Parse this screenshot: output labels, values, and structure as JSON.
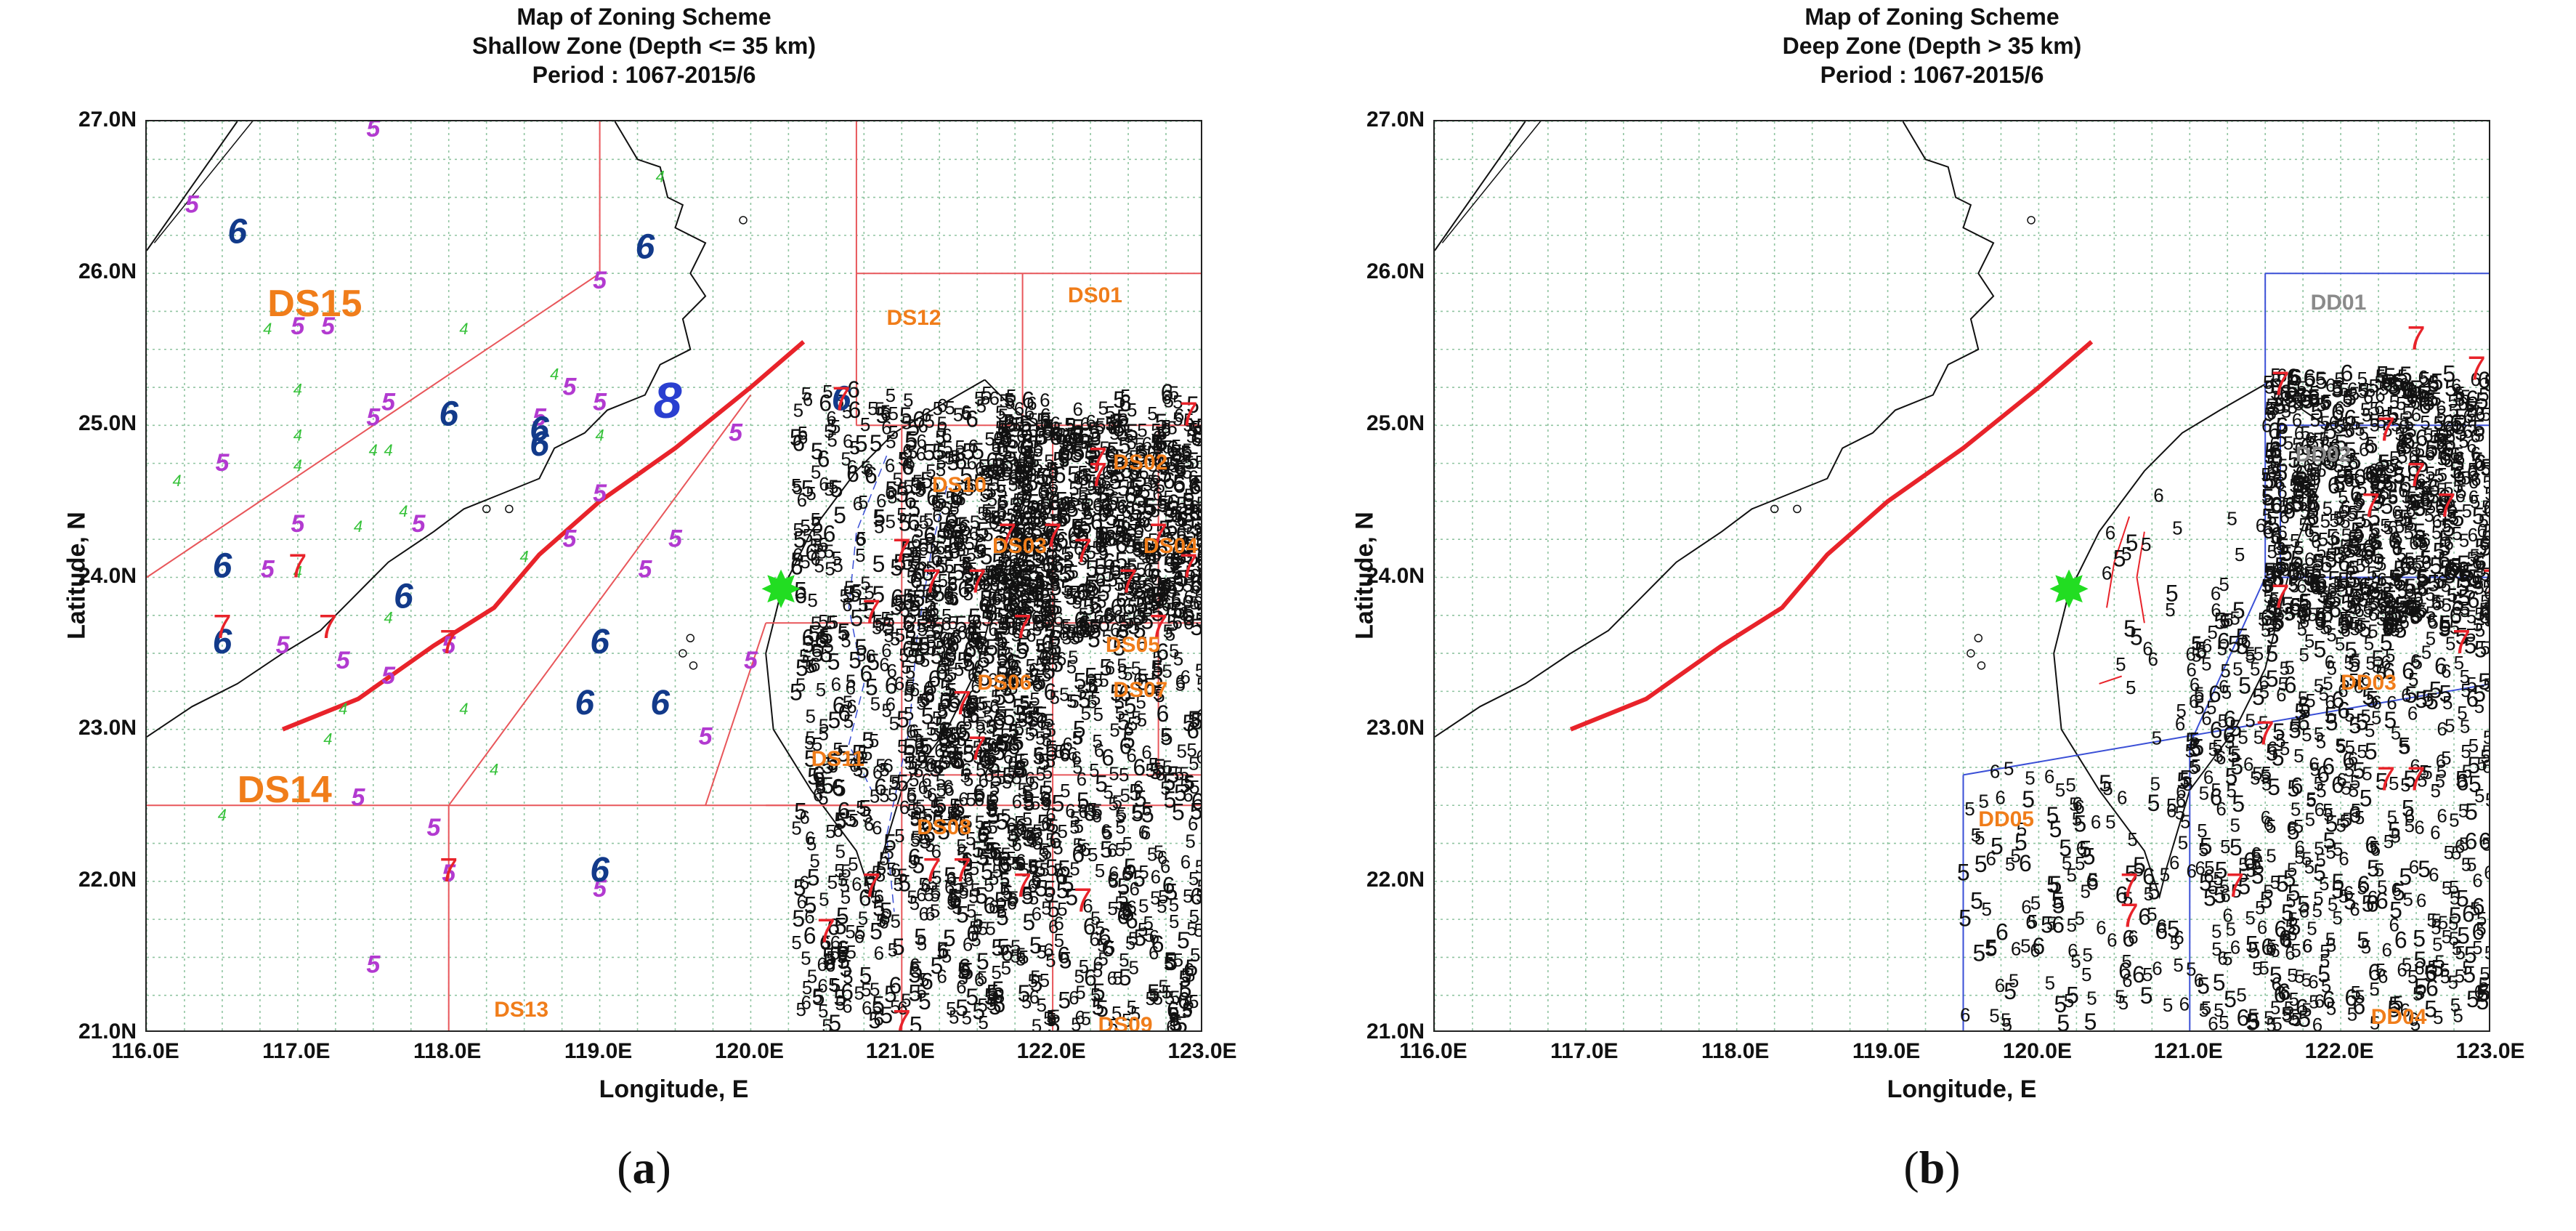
{
  "figure": {
    "panels": [
      {
        "id": "a",
        "title_lines": [
          "Map of Zoning Scheme",
          "Shallow Zone (Depth <= 35 km)",
          "Period : 1067-2015/6"
        ],
        "caption_letter": "a",
        "zone_labels": [
          "DS15",
          "DS14",
          "DS12",
          "DS01",
          "DS02",
          "DS10",
          "DS03",
          "DS04",
          "DS05",
          "DS06",
          "DS07",
          "DS11",
          "DS08",
          "DS13",
          "DS09"
        ]
      },
      {
        "id": "b",
        "title_lines": [
          "Map of Zoning Scheme",
          "Deep Zone (Depth > 35 km)",
          "Period : 1067-2015/6"
        ],
        "caption_letter": "b",
        "zone_labels": [
          "DD01",
          "DD02",
          "DD03",
          "DD05",
          "DD04"
        ]
      }
    ],
    "axes": {
      "xlabel": "Longitude, E",
      "ylabel": "Latitude, N",
      "xticks": [
        "116.0E",
        "117.0E",
        "118.0E",
        "119.0E",
        "120.0E",
        "121.0E",
        "122.0E",
        "123.0E"
      ],
      "yticks": [
        "27.0N",
        "26.0N",
        "25.0N",
        "24.0N",
        "23.0N",
        "22.0N",
        "21.0N"
      ],
      "lon_range": [
        116.0,
        123.0
      ],
      "lat_range": [
        21.0,
        27.0
      ]
    },
    "colors": {
      "zone_line_a": "#e8565a",
      "zone_line_b": "#3a4fd6",
      "fault": "#e8232a",
      "grid": "#8fc4a0",
      "label": "#f07d1a",
      "mag4": "#36c23a",
      "mag5_purple": "#b23ad0",
      "mag6_blue": "#123a8a",
      "mag7": "#e8232a",
      "station": "#22dd22"
    },
    "chart_data": [
      {
        "type": "scatter",
        "title": "Map of Zoning Scheme — Shallow Zone (Depth <= 35 km) — Period : 1067-2015/6",
        "xlabel": "Longitude, E",
        "ylabel": "Latitude, N",
        "xlim": [
          116.0,
          123.0
        ],
        "ylim": [
          21.0,
          27.0
        ],
        "series": [
          {
            "name": "M4 (green)",
            "points": [
              [
                116.2,
                24.6
              ],
              [
                116.5,
                22.4
              ],
              [
                116.8,
                25.6
              ],
              [
                117.0,
                25.2
              ],
              [
                117.0,
                24.9
              ],
              [
                117.0,
                24.7
              ],
              [
                117.4,
                24.3
              ],
              [
                117.5,
                24.8
              ],
              [
                117.6,
                24.8
              ],
              [
                117.7,
                24.4
              ],
              [
                117.6,
                23.7
              ],
              [
                117.3,
                23.1
              ],
              [
                118.1,
                23.1
              ],
              [
                118.1,
                25.6
              ],
              [
                118.3,
                22.7
              ],
              [
                118.7,
                25.3
              ],
              [
                119.0,
                24.9
              ],
              [
                118.5,
                24.1
              ],
              [
                119.4,
                26.6
              ],
              [
                117.2,
                22.9
              ],
              [
                117.0,
                24.0
              ]
            ]
          },
          {
            "name": "M5 (purple)",
            "points": [
              [
                116.3,
                26.4
              ],
              [
                117.5,
                26.9
              ],
              [
                117.0,
                25.6
              ],
              [
                117.2,
                25.6
              ],
              [
                117.5,
                25.0
              ],
              [
                117.6,
                25.1
              ],
              [
                116.5,
                24.7
              ],
              [
                117.0,
                24.3
              ],
              [
                116.8,
                24.0
              ],
              [
                116.9,
                23.5
              ],
              [
                117.3,
                23.4
              ],
              [
                117.6,
                23.3
              ],
              [
                117.8,
                24.3
              ],
              [
                118.0,
                23.5
              ],
              [
                117.4,
                22.5
              ],
              [
                117.9,
                22.3
              ],
              [
                119.0,
                25.1
              ],
              [
                118.6,
                25.0
              ],
              [
                118.8,
                25.2
              ],
              [
                119.0,
                24.5
              ],
              [
                118.8,
                24.2
              ],
              [
                119.3,
                24.0
              ],
              [
                119.9,
                24.9
              ],
              [
                120.0,
                23.4
              ],
              [
                119.7,
                22.9
              ],
              [
                119.0,
                21.9
              ],
              [
                118.0,
                22.0
              ],
              [
                117.5,
                21.4
              ],
              [
                119.0,
                25.9
              ],
              [
                119.5,
                24.2
              ]
            ]
          },
          {
            "name": "M6 (blue)",
            "points": [
              [
                116.6,
                26.2
              ],
              [
                119.3,
                26.1
              ],
              [
                118.0,
                25.0
              ],
              [
                118.6,
                24.9
              ],
              [
                118.6,
                24.8
              ],
              [
                116.5,
                24.0
              ],
              [
                117.7,
                23.8
              ],
              [
                116.5,
                23.5
              ],
              [
                119.0,
                23.5
              ],
              [
                118.9,
                23.1
              ],
              [
                119.4,
                23.1
              ],
              [
                119.0,
                22.0
              ],
              [
                120.6,
                25.1
              ]
            ]
          },
          {
            "name": "M7 (red)",
            "points": [
              [
                117.0,
                24.0
              ],
              [
                116.5,
                23.6
              ],
              [
                117.2,
                23.6
              ],
              [
                118.0,
                23.5
              ],
              [
                118.0,
                22.0
              ],
              [
                121.0,
                24.1
              ],
              [
                121.2,
                23.9
              ],
              [
                121.5,
                23.9
              ],
              [
                121.7,
                24.2
              ],
              [
                121.8,
                23.6
              ],
              [
                122.0,
                24.2
              ],
              [
                122.3,
                24.6
              ],
              [
                122.2,
                24.1
              ],
              [
                122.5,
                23.9
              ],
              [
                122.7,
                24.2
              ],
              [
                122.9,
                24.0
              ],
              [
                121.5,
                22.8
              ],
              [
                121.2,
                22.0
              ],
              [
                121.4,
                22.0
              ],
              [
                120.8,
                21.9
              ],
              [
                121.8,
                21.9
              ],
              [
                122.2,
                21.8
              ],
              [
                120.5,
                21.6
              ],
              [
                121.0,
                21.0
              ],
              [
                122.7,
                23.6
              ],
              [
                122.9,
                25.0
              ],
              [
                120.6,
                25.1
              ],
              [
                120.8,
                23.7
              ],
              [
                121.4,
                23.1
              ],
              [
                122.3,
                24.7
              ]
            ]
          },
          {
            "name": "Station",
            "points": [
              [
                120.2,
                23.9
              ]
            ]
          }
        ]
      },
      {
        "type": "scatter",
        "title": "Map of Zoning Scheme — Deep Zone (Depth > 35 km) — Period : 1067-2015/6",
        "xlabel": "Longitude, E",
        "ylabel": "Latitude, N",
        "xlim": [
          116.0,
          123.0
        ],
        "ylim": [
          21.0,
          27.0
        ],
        "series": [
          {
            "name": "M7 (red)",
            "points": [
              [
                121.6,
                25.2
              ],
              [
                122.5,
                25.5
              ],
              [
                122.9,
                25.3
              ],
              [
                122.5,
                24.6
              ],
              [
                122.2,
                24.4
              ],
              [
                122.7,
                24.4
              ],
              [
                123.0,
                23.9
              ],
              [
                121.6,
                23.8
              ],
              [
                121.5,
                22.9
              ],
              [
                120.6,
                21.7
              ],
              [
                121.3,
                21.9
              ],
              [
                122.3,
                22.6
              ],
              [
                122.5,
                22.6
              ],
              [
                122.8,
                23.5
              ],
              [
                122.3,
                24.9
              ],
              [
                120.6,
                21.9
              ]
            ]
          },
          {
            "name": "Station",
            "points": [
              [
                120.2,
                23.9
              ]
            ]
          }
        ]
      }
    ]
  }
}
